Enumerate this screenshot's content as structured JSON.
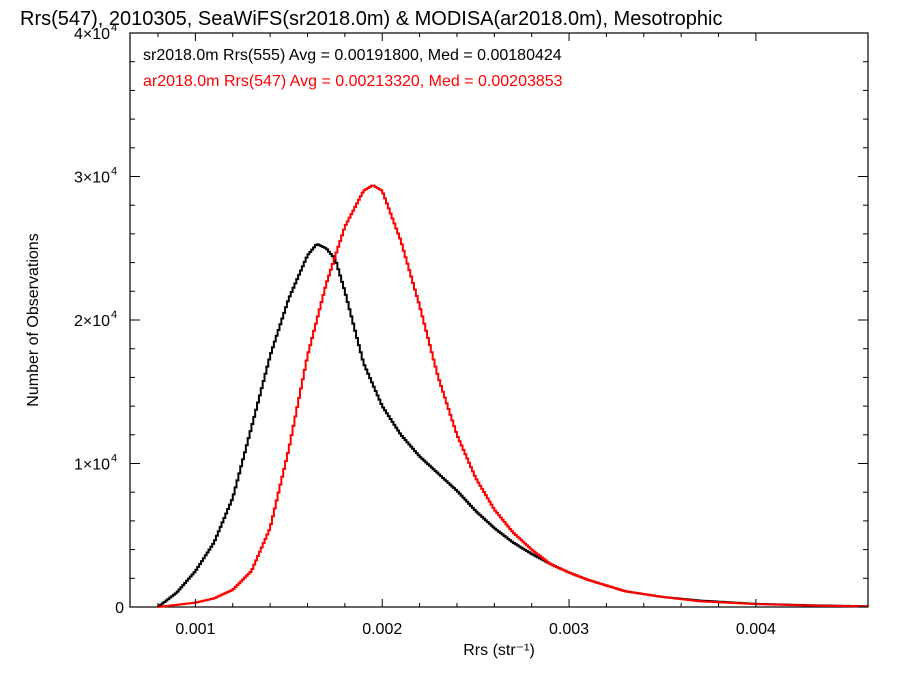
{
  "chart_data": {
    "type": "line",
    "title": "Rrs(547), 2010305, SeaWiFS(sr2018.0m) & MODISA(ar2018.0m), Mesotrophic",
    "xlabel": "Rrs (str⁻¹)",
    "ylabel": "Number of Observations",
    "xlim": [
      0.00065,
      0.0046
    ],
    "ylim": [
      0,
      40000
    ],
    "xticks": [
      {
        "value": 0.001,
        "label": "0.001"
      },
      {
        "value": 0.002,
        "label": "0.002"
      },
      {
        "value": 0.003,
        "label": "0.003"
      },
      {
        "value": 0.004,
        "label": "0.004"
      }
    ],
    "yticks": [
      {
        "value": 0,
        "label": "0"
      },
      {
        "value": 10000,
        "label": "1×10",
        "exp": "4"
      },
      {
        "value": 20000,
        "label": "2×10",
        "exp": "4"
      },
      {
        "value": 30000,
        "label": "3×10",
        "exp": "4"
      },
      {
        "value": 40000,
        "label": "4×10",
        "exp": "4"
      }
    ],
    "grid": false,
    "legend_position": "top-left",
    "series": [
      {
        "name": "sr2018.0m Rrs(555) Avg = 0.00191800, Med = 0.00180424",
        "color": "#000000",
        "x": [
          0.0008,
          0.0009,
          0.001,
          0.0011,
          0.0012,
          0.0013,
          0.0014,
          0.0015,
          0.0016,
          0.00165,
          0.0017,
          0.00175,
          0.0018,
          0.0019,
          0.002,
          0.0021,
          0.0022,
          0.0023,
          0.0024,
          0.0025,
          0.0026,
          0.0027,
          0.0028,
          0.0029,
          0.003,
          0.0031,
          0.0032,
          0.0033,
          0.0035,
          0.0037,
          0.004,
          0.0043,
          0.0046
        ],
        "y": [
          0,
          1000,
          2500,
          4500,
          7600,
          12500,
          17500,
          21500,
          24500,
          25300,
          25000,
          24200,
          22000,
          17000,
          14000,
          12000,
          10500,
          9300,
          8100,
          6700,
          5500,
          4500,
          3700,
          3000,
          2400,
          1900,
          1500,
          1100,
          700,
          450,
          220,
          120,
          50
        ]
      },
      {
        "name": "ar2018.0m Rrs(547) Avg = 0.00213320, Med = 0.00203853",
        "color": "#ff0000",
        "x": [
          0.0008,
          0.001,
          0.0011,
          0.0012,
          0.0013,
          0.0014,
          0.0015,
          0.0016,
          0.0017,
          0.0018,
          0.0019,
          0.00195,
          0.002,
          0.0021,
          0.0022,
          0.0023,
          0.0024,
          0.0025,
          0.0026,
          0.0027,
          0.0028,
          0.0029,
          0.003,
          0.0031,
          0.0032,
          0.0033,
          0.0035,
          0.0037,
          0.004,
          0.0043,
          0.0046
        ],
        "y": [
          0,
          300,
          600,
          1200,
          2500,
          5500,
          11000,
          17500,
          22500,
          26500,
          29000,
          29400,
          29000,
          25500,
          21000,
          16000,
          12000,
          9000,
          6800,
          5200,
          4000,
          3000,
          2400,
          1900,
          1500,
          1100,
          700,
          400,
          200,
          100,
          40
        ]
      }
    ]
  }
}
